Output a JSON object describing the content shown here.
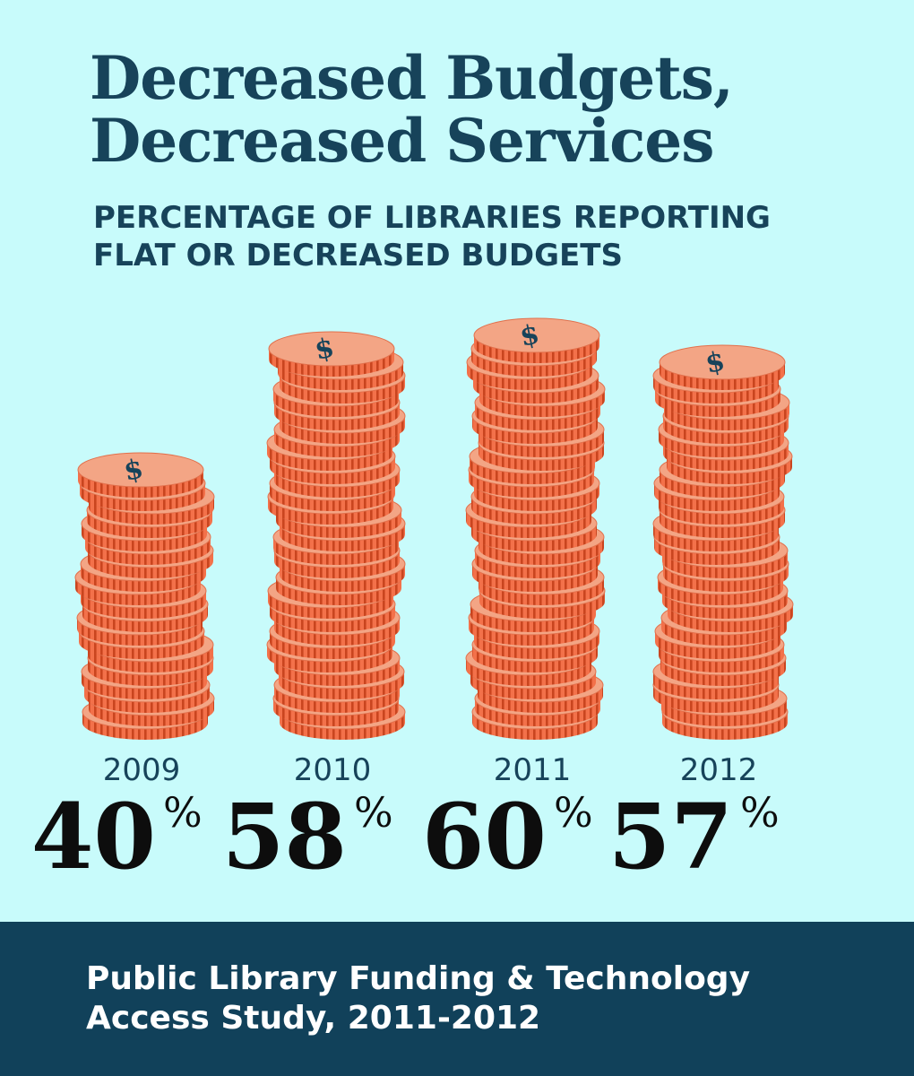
{
  "header": {
    "title_line1": "Decreased Budgets,",
    "title_line2": "Decreased Services",
    "subtitle_line1": "PERCENTAGE OF LIBRARIES REPORTING",
    "subtitle_line2": "FLAT OR DECREASED BUDGETS"
  },
  "chart_data": {
    "type": "bar",
    "categories": [
      "2009",
      "2010",
      "2011",
      "2012"
    ],
    "values": [
      40,
      58,
      60,
      57
    ],
    "unit": "%",
    "coin_symbol": "$"
  },
  "footer": {
    "source_line1": "Public Library Funding & Technology",
    "source_line2": "Access Study, 2011-2012"
  },
  "colors": {
    "background": "#c8fbfb",
    "title": "#17435a",
    "coin_face": "#f3a585",
    "coin_edge": "#f3714a",
    "coin_stripe": "#c9451f",
    "footer": "#11415a"
  }
}
